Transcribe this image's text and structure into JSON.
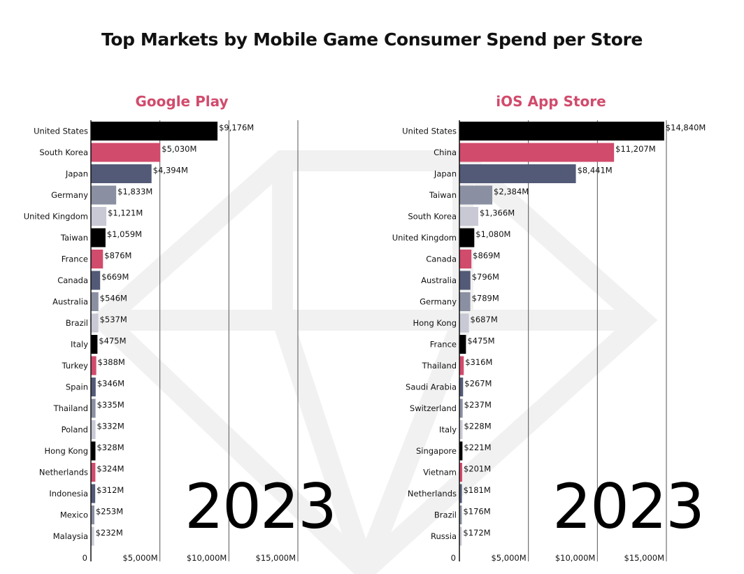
{
  "title": "Top Markets by Mobile Game Consumer Spend per Store",
  "colors": {
    "cycle": [
      "#000000",
      "#d14b6c",
      "#525a77",
      "#8a90a2",
      "#c8c9d5"
    ],
    "panel_title": "#d14b6c",
    "grid": "#555555"
  },
  "chart_data": [
    {
      "type": "bar",
      "orientation": "horizontal",
      "title": "Google Play",
      "year_label": "2023",
      "xlim": [
        0,
        15000
      ],
      "xticks": [
        0,
        5000,
        10000,
        15000
      ],
      "xtick_labels": [
        "0",
        "$5,000M",
        "$10,000M",
        "$15,000M"
      ],
      "grid": true,
      "categories": [
        "United States",
        "South Korea",
        "Japan",
        "Germany",
        "United Kingdom",
        "Taiwan",
        "France",
        "Canada",
        "Australia",
        "Brazil",
        "Italy",
        "Turkey",
        "Spain",
        "Thailand",
        "Poland",
        "Hong Kong",
        "Netherlands",
        "Indonesia",
        "Mexico",
        "Malaysia"
      ],
      "values": [
        9176,
        5030,
        4394,
        1833,
        1121,
        1059,
        876,
        669,
        546,
        537,
        475,
        388,
        346,
        335,
        332,
        328,
        324,
        312,
        253,
        232
      ],
      "value_labels": [
        "$9,176M",
        "$5,030M",
        "$4,394M",
        "$1,833M",
        "$1,121M",
        "$1,059M",
        "$876M",
        "$669M",
        "$546M",
        "$537M",
        "$475M",
        "$388M",
        "$346M",
        "$335M",
        "$332M",
        "$328M",
        "$324M",
        "$312M",
        "$253M",
        "$232M"
      ]
    },
    {
      "type": "bar",
      "orientation": "horizontal",
      "title": "iOS App Store",
      "year_label": "2023",
      "xlim": [
        0,
        15000
      ],
      "xticks": [
        0,
        5000,
        10000,
        15000
      ],
      "xtick_labels": [
        "0",
        "$5,000M",
        "$10,000M",
        "$15,000M"
      ],
      "grid": true,
      "categories": [
        "United States",
        "China",
        "Japan",
        "Taiwan",
        "South Korea",
        "United Kingdom",
        "Canada",
        "Australia",
        "Germany",
        "Hong Kong",
        "France",
        "Thailand",
        "Saudi Arabia",
        "Switzerland",
        "Italy",
        "Singapore",
        "Vietnam",
        "Netherlands",
        "Brazil",
        "Russia"
      ],
      "values": [
        14840,
        11207,
        8441,
        2384,
        1366,
        1080,
        869,
        796,
        789,
        687,
        475,
        316,
        267,
        237,
        228,
        221,
        201,
        181,
        176,
        172
      ],
      "value_labels": [
        "$14,840M",
        "$11,207M",
        "$8,441M",
        "$2,384M",
        "$1,366M",
        "$1,080M",
        "$869M",
        "$796M",
        "$789M",
        "$687M",
        "$475M",
        "$316M",
        "$267M",
        "$237M",
        "$228M",
        "$221M",
        "$201M",
        "$181M",
        "$176M",
        "$172M"
      ]
    }
  ]
}
